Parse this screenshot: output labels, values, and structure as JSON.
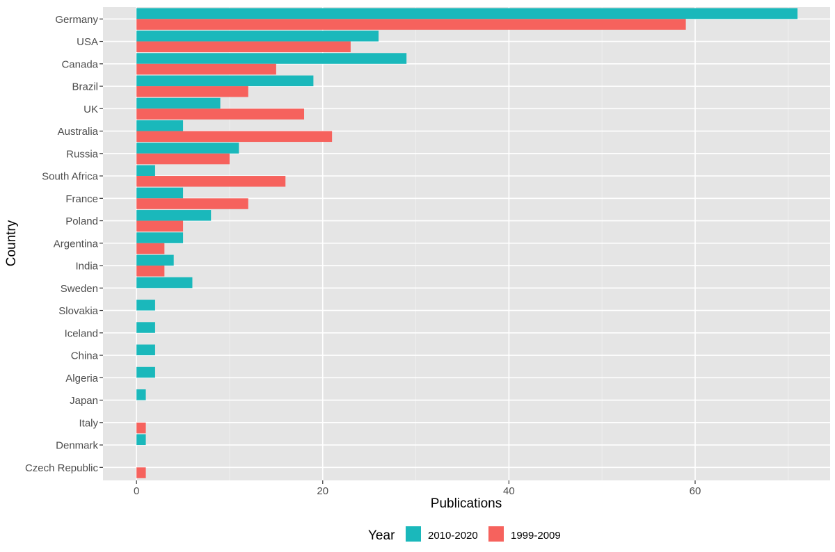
{
  "chart_data": {
    "type": "bar",
    "orientation": "horizontal",
    "xlabel": "Publications",
    "ylabel": "Country",
    "xlim": [
      -3.6,
      74.5
    ],
    "x_ticks": [
      0,
      20,
      40,
      60
    ],
    "grid": true,
    "legend_position": "bottom",
    "legend_title": "Year",
    "categories": [
      "Germany",
      "USA",
      "Canada",
      "Brazil",
      "UK",
      "Australia",
      "Russia",
      "South Africa",
      "France",
      "Poland",
      "Argentina",
      "India",
      "Sweden",
      "Slovakia",
      "Iceland",
      "China",
      "Algeria",
      "Japan",
      "Italy",
      "Denmark",
      "Czech Republic"
    ],
    "series": [
      {
        "name": "2010-2020",
        "color": "#1ab8bb",
        "values": [
          71,
          26,
          29,
          19,
          9,
          5,
          11,
          2,
          5,
          8,
          5,
          4,
          6,
          2,
          2,
          2,
          2,
          1,
          0,
          1,
          0
        ]
      },
      {
        "name": "1999-2009",
        "color": "#f6625d",
        "values": [
          59,
          23,
          15,
          12,
          18,
          21,
          10,
          16,
          12,
          5,
          3,
          3,
          0,
          0,
          0,
          0,
          0,
          0,
          1,
          0,
          1
        ]
      }
    ]
  }
}
